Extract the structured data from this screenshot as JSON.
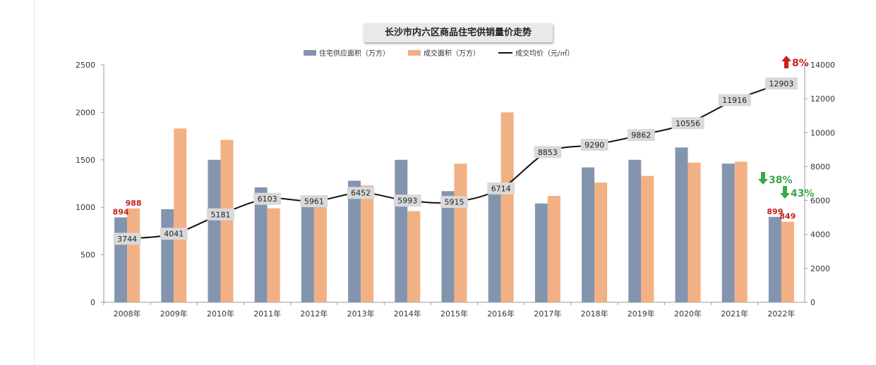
{
  "chart_data": {
    "type": "bar",
    "title": "长沙市内六区商品住宅供销量价走势",
    "categories": [
      "2008年",
      "2009年",
      "2010年",
      "2011年",
      "2012年",
      "2013年",
      "2014年",
      "2015年",
      "2016年",
      "2017年",
      "2018年",
      "2019年",
      "2020年",
      "2021年",
      "2022年"
    ],
    "series": [
      {
        "name": "住宅供应面积（万方）",
        "type": "bar",
        "axis": "left",
        "color": "#8395ae",
        "values": [
          894,
          980,
          1500,
          1210,
          1010,
          1280,
          1500,
          1170,
          1180,
          1040,
          1420,
          1500,
          1630,
          1460,
          899
        ]
      },
      {
        "name": "成交面积（万方）",
        "type": "bar",
        "axis": "left",
        "color": "#f2b184",
        "values": [
          988,
          1830,
          1710,
          990,
          1060,
          1230,
          960,
          1460,
          2000,
          1120,
          1260,
          1330,
          1470,
          1480,
          849
        ]
      },
      {
        "name": "成交均价（元/㎡）",
        "type": "line",
        "axis": "right",
        "color": "#111111",
        "values": [
          3744,
          4041,
          5181,
          6103,
          5961,
          6452,
          5993,
          5915,
          6714,
          8853,
          9290,
          9862,
          10556,
          11916,
          12903
        ]
      }
    ],
    "left_axis": {
      "ylim": [
        0,
        2500
      ],
      "ticks": [
        "0",
        "500",
        "1000",
        "1500",
        "2000",
        "2500"
      ]
    },
    "right_axis": {
      "ylim": [
        0,
        14000
      ],
      "ticks": [
        "0",
        "2000",
        "4000",
        "6000",
        "8000",
        "10000",
        "12000",
        "14000"
      ]
    },
    "legend_position": "top-center",
    "annotations": {
      "supply_2008": "894",
      "deal_2008": "988",
      "supply_2022": "899",
      "deal_2022": "849",
      "price_change": "8%",
      "supply_change": "38%",
      "deal_change": "43%"
    },
    "colors": {
      "red": "#c62020",
      "green": "#3aa84a"
    }
  }
}
